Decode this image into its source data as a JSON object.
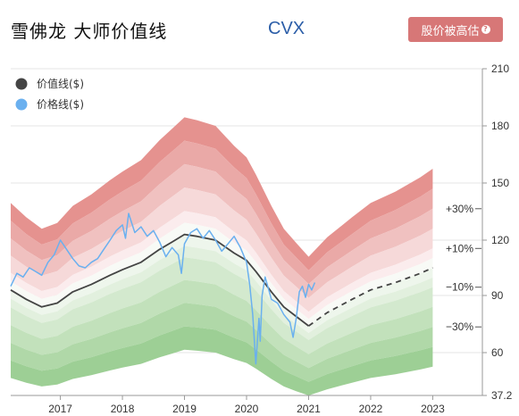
{
  "header": {
    "title": "雪佛龙 大师价值线",
    "ticker": "CVX",
    "badge_label": "股价被高估",
    "badge_icon": "question-icon"
  },
  "chart_data": {
    "type": "area",
    "y_ticks": [
      "210",
      "180",
      "150",
      "120",
      "90",
      "60",
      "37.2"
    ],
    "y_tick_values": [
      210,
      180,
      150,
      120,
      90,
      60,
      37.2
    ],
    "x_ticks": [
      "2017",
      "2018",
      "2019",
      "2020",
      "2021",
      "2022",
      "2023"
    ],
    "x_tick_values": [
      2017,
      2018,
      2019,
      2020,
      2021,
      2022,
      2023
    ],
    "ylim": [
      37.2,
      210
    ],
    "xlim": [
      2016.2,
      2023.8
    ],
    "grid": true,
    "legend_position": "top-left",
    "band_labels": [
      "+30%",
      "+10%",
      "−10%",
      "−30%"
    ],
    "band_offsets": [
      0.5,
      0.4,
      0.3,
      0.2,
      0.1,
      0.05,
      0,
      -0.05,
      -0.1,
      -0.2,
      -0.3,
      -0.4,
      -0.5
    ],
    "band_colors": {
      "upper": [
        "#e5928f",
        "#eaa9a7",
        "#f0c1c0",
        "#f6d9d9",
        "#fbeced"
      ],
      "middle": [
        "#f8faf6",
        "#eef6ec"
      ],
      "lower": [
        "#e2f0de",
        "#d3e9ce",
        "#c2e1bb",
        "#b0d8a8",
        "#9dcf95"
      ]
    },
    "series": [
      {
        "name": "价值线($)",
        "color": "#444444",
        "x": [
          2016.2,
          2016.45,
          2016.7,
          2016.95,
          2017.2,
          2017.5,
          2017.8,
          2018.0,
          2018.3,
          2018.6,
          2018.8,
          2019.0,
          2019.2,
          2019.5,
          2019.8,
          2020.0,
          2020.15,
          2020.4,
          2020.6,
          2020.8,
          2021.0
        ],
        "y": [
          93,
          88,
          84,
          86,
          92,
          96,
          101,
          104,
          108,
          115,
          119,
          123,
          122,
          120,
          113,
          109,
          103,
          92,
          84,
          79,
          74
        ]
      },
      {
        "name": "价值线预测",
        "color": "#444444",
        "dashed": true,
        "x": [
          2021.0,
          2021.3,
          2021.7,
          2022.0,
          2022.4,
          2022.8,
          2023.0
        ],
        "y": [
          74,
          81,
          88,
          93,
          97,
          102,
          105
        ]
      },
      {
        "name": "价格线($)",
        "color": "#6ab0ef",
        "x": [
          2016.2,
          2016.3,
          2016.4,
          2016.5,
          2016.6,
          2016.7,
          2016.8,
          2016.9,
          2017.0,
          2017.1,
          2017.2,
          2017.3,
          2017.4,
          2017.5,
          2017.6,
          2017.7,
          2017.8,
          2017.9,
          2018.0,
          2018.05,
          2018.1,
          2018.2,
          2018.3,
          2018.4,
          2018.5,
          2018.6,
          2018.7,
          2018.8,
          2018.9,
          2018.95,
          2019.0,
          2019.1,
          2019.2,
          2019.3,
          2019.4,
          2019.5,
          2019.6,
          2019.7,
          2019.8,
          2019.9,
          2020.0,
          2020.05,
          2020.1,
          2020.15,
          2020.2,
          2020.22,
          2020.25,
          2020.3,
          2020.35,
          2020.4,
          2020.5,
          2020.6,
          2020.7,
          2020.75,
          2020.8,
          2020.85,
          2020.9,
          2020.95,
          2021.0,
          2021.05,
          2021.1
        ],
        "y": [
          95,
          102,
          100,
          105,
          103,
          101,
          108,
          112,
          120,
          115,
          110,
          106,
          105,
          108,
          110,
          115,
          120,
          125,
          128,
          121,
          134,
          124,
          127,
          122,
          125,
          119,
          111,
          116,
          112,
          102,
          118,
          124,
          126,
          121,
          125,
          120,
          114,
          118,
          122,
          116,
          108,
          96,
          80,
          54,
          78,
          66,
          90,
          100,
          94,
          88,
          86,
          80,
          76,
          68,
          78,
          92,
          95,
          89,
          96,
          93,
          97
        ]
      }
    ]
  }
}
